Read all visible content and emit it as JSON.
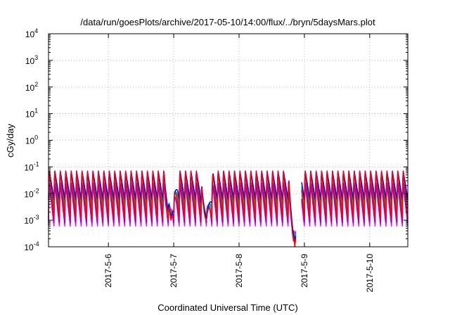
{
  "chart_data": {
    "type": "line",
    "title": "/data/run/goesPlots/archive/2017-05-10/14:00/flux/../bryn/5daysMars.plot",
    "xlabel": "Coordinated Universal Time (UTC)",
    "ylabel": "cGy/day",
    "yscale": "log",
    "ylim": [
      0.0001,
      10000
    ],
    "y_ticks": [
      {
        "value": 0.0001,
        "base": "10",
        "exp": "-4"
      },
      {
        "value": 0.001,
        "base": "10",
        "exp": "-3"
      },
      {
        "value": 0.01,
        "base": "10",
        "exp": "-2"
      },
      {
        "value": 0.1,
        "base": "10",
        "exp": "-1"
      },
      {
        "value": 1,
        "base": "10",
        "exp": "0"
      },
      {
        "value": 10,
        "base": "10",
        "exp": "1"
      },
      {
        "value": 100,
        "base": "10",
        "exp": "2"
      },
      {
        "value": 1000,
        "base": "10",
        "exp": "3"
      },
      {
        "value": 10000,
        "base": "10",
        "exp": "4"
      }
    ],
    "xlim": [
      "2017-05-05T02:00",
      "2017-05-10T14:00"
    ],
    "x_ticks": [
      {
        "date": "2017-05-06T00:00",
        "label": "2017-5-6"
      },
      {
        "date": "2017-05-07T00:00",
        "label": "2017-5-7"
      },
      {
        "date": "2017-05-08T00:00",
        "label": "2017-5-8"
      },
      {
        "date": "2017-05-09T00:00",
        "label": "2017-5-9"
      },
      {
        "date": "2017-05-10T00:00",
        "label": "2017-5-10"
      }
    ],
    "grid": true,
    "pattern": {
      "sawtooth_period_hours": 2,
      "peak_level": 0.07,
      "gaps": [
        [
          "2017-05-08T21:00",
          "2017-05-08T23:00"
        ]
      ],
      "dips": [
        {
          "date": "2017-05-06T23:00",
          "min": 0.001
        },
        {
          "date": "2017-05-07T12:00",
          "min": 0.001
        },
        {
          "date": "2017-05-08T20:30",
          "min": 0.0001
        }
      ]
    },
    "series": [
      {
        "color": "#ff0000",
        "peak": 0.085,
        "trough": 0.0012
      },
      {
        "color": "#0000ff",
        "peak": 0.08,
        "trough": 0.006
      },
      {
        "color": "#00bb00",
        "peak": 0.065,
        "trough": 0.0035
      },
      {
        "color": "#00aaaa",
        "peak": 0.07,
        "trough": 0.002
      },
      {
        "color": "#9400d3",
        "peak": 0.03,
        "trough": 0.0008
      },
      {
        "color": "#ff00ff",
        "peak": 0.025,
        "trough": 0.0006
      }
    ]
  }
}
